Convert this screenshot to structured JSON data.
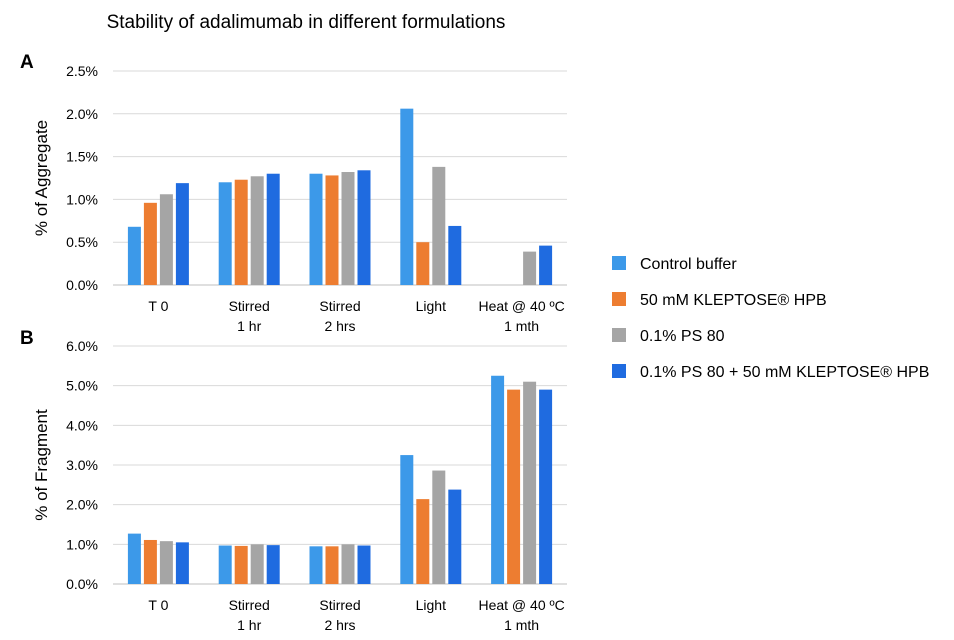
{
  "title": "Stability of adalimumab in different formulations",
  "colors": {
    "control_buffer": "#3C99E9",
    "kleptose": "#ED7D31",
    "ps80": "#A5A5A5",
    "ps80_kleptose": "#1F6BE0"
  },
  "legend": [
    {
      "label": "Control buffer",
      "color_key": "control_buffer"
    },
    {
      "label": "50 mM KLEPTOSE® HPB",
      "color_key": "kleptose"
    },
    {
      "label": "0.1% PS 80",
      "color_key": "ps80"
    },
    {
      "label": "0.1% PS 80 + 50 mM KLEPTOSE® HPB",
      "color_key": "ps80_kleptose"
    }
  ],
  "chart_data": [
    {
      "panel": "A",
      "type": "bar",
      "ylabel": "% of Aggregate",
      "ylim": [
        0,
        2.5
      ],
      "yticks": [
        "0.0%",
        "0.5%",
        "1.0%",
        "1.5%",
        "2.0%",
        "2.5%"
      ],
      "grid": true,
      "legend_position": "right",
      "categories": [
        [
          "T 0"
        ],
        [
          "Stirred",
          "1 hr"
        ],
        [
          "Stirred",
          "2 hrs"
        ],
        [
          "Light"
        ],
        [
          "Heat @ 40 ºC",
          "1 mth"
        ]
      ],
      "series": [
        {
          "name": "Control buffer",
          "values": [
            0.68,
            1.2,
            1.3,
            2.06,
            null
          ]
        },
        {
          "name": "50 mM KLEPTOSE® HPB",
          "values": [
            0.96,
            1.23,
            1.28,
            0.5,
            null
          ]
        },
        {
          "name": "0.1% PS 80",
          "values": [
            1.06,
            1.27,
            1.32,
            1.38,
            0.39
          ]
        },
        {
          "name": "0.1% PS 80 + 50 mM KLEPTOSE® HPB",
          "values": [
            1.19,
            1.3,
            1.34,
            0.69,
            0.46
          ]
        }
      ]
    },
    {
      "panel": "B",
      "type": "bar",
      "ylabel": "% of Fragment",
      "ylim": [
        0,
        6
      ],
      "yticks": [
        "0.0%",
        "1.0%",
        "2.0%",
        "3.0%",
        "4.0%",
        "5.0%",
        "6.0%"
      ],
      "grid": true,
      "legend_position": "right",
      "categories": [
        [
          "T 0"
        ],
        [
          "Stirred",
          "1 hr"
        ],
        [
          "Stirred",
          "2 hrs"
        ],
        [
          "Light"
        ],
        [
          "Heat @ 40 ºC",
          "1 mth"
        ]
      ],
      "series": [
        {
          "name": "Control buffer",
          "values": [
            1.27,
            0.97,
            0.95,
            3.25,
            5.25
          ]
        },
        {
          "name": "50 mM KLEPTOSE® HPB",
          "values": [
            1.11,
            0.96,
            0.95,
            2.14,
            4.9
          ]
        },
        {
          "name": "0.1% PS 80",
          "values": [
            1.08,
            1.0,
            1.0,
            2.86,
            5.1
          ]
        },
        {
          "name": "0.1% PS 80 + 50 mM KLEPTOSE® HPB",
          "values": [
            1.05,
            0.98,
            0.97,
            2.38,
            4.9
          ]
        }
      ]
    }
  ]
}
